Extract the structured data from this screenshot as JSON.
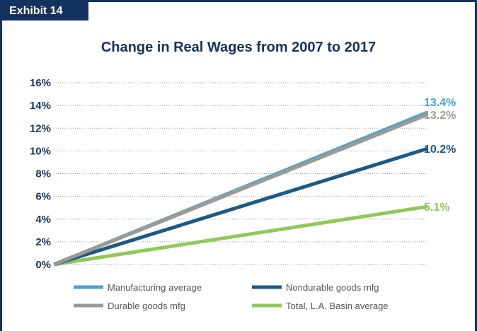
{
  "exhibit_label": "Exhibit 14",
  "chart_data": {
    "type": "line",
    "title": "Change in Real Wages from 2007 to 2017",
    "xlabel": "",
    "ylabel": "",
    "x": [
      2007,
      2017
    ],
    "ylim": [
      0,
      16
    ],
    "yticks": [
      "0%",
      "2%",
      "4%",
      "6%",
      "8%",
      "10%",
      "12%",
      "14%",
      "16%"
    ],
    "grid": true,
    "legend_position": "bottom",
    "series": [
      {
        "name": "Manufacturing average",
        "values": [
          0,
          13.4
        ],
        "end_label": "13.4%",
        "color": "#4aa3d4"
      },
      {
        "name": "Nondurable goods mfg",
        "values": [
          0,
          10.2
        ],
        "end_label": "10.2%",
        "color": "#1a5a86"
      },
      {
        "name": "Durable goods mfg",
        "values": [
          0,
          13.2
        ],
        "end_label": "13.2%",
        "color": "#9c9a93"
      },
      {
        "name": "Total, L.A. Basin average",
        "values": [
          0,
          5.1
        ],
        "end_label": "5.1%",
        "color": "#8fc957"
      }
    ]
  }
}
